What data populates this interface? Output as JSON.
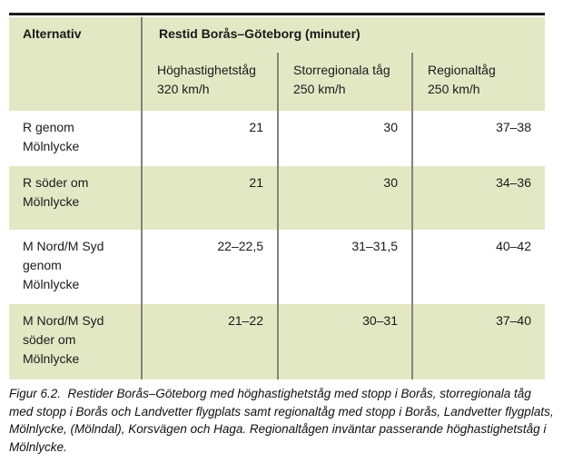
{
  "table": {
    "col1_header": "Alternativ",
    "group_header": "Restid Borås–Göteborg (minuter)",
    "sub_headers": [
      {
        "line1": "Höghastighetståg",
        "line2": "320 km/h"
      },
      {
        "line1": "Storregionala tåg",
        "line2": "250 km/h"
      },
      {
        "line1": "Regionaltåg",
        "line2": "250 km/h"
      }
    ],
    "rows": [
      {
        "label_lines": [
          "R genom",
          "Mölnlycke"
        ],
        "values": [
          "21",
          "30",
          "37–38"
        ]
      },
      {
        "label_lines": [
          "R söder om",
          "Mölnlycke"
        ],
        "values": [
          "21",
          "30",
          "34–36"
        ]
      },
      {
        "label_lines": [
          "M Nord/M Syd",
          "genom",
          "Mölnlycke"
        ],
        "values": [
          "22–22,5",
          "31–31,5",
          "40–42"
        ]
      },
      {
        "label_lines": [
          "M Nord/M Syd",
          "söder om",
          "Mölnlycke"
        ],
        "values": [
          "21–22",
          "30–31",
          "37–40"
        ]
      }
    ]
  },
  "caption": {
    "text": "Figur 6.2.  Restider Borås–Göteborg med höghastighetståg med stopp i Borås, storregionala tåg med stopp i Borås och Landvetter flygplats samt regionaltåg med stopp i Borås, Landvetter flygplats, Mölnlycke, (Mölndal), Korsvägen och Haga. Regionaltågen inväntar passerande höghastighetståg i Mölnlycke."
  },
  "colors": {
    "row_highlight": "#e3e8c4",
    "divider": "#84847a",
    "top_rule": "#1c1c1c"
  }
}
